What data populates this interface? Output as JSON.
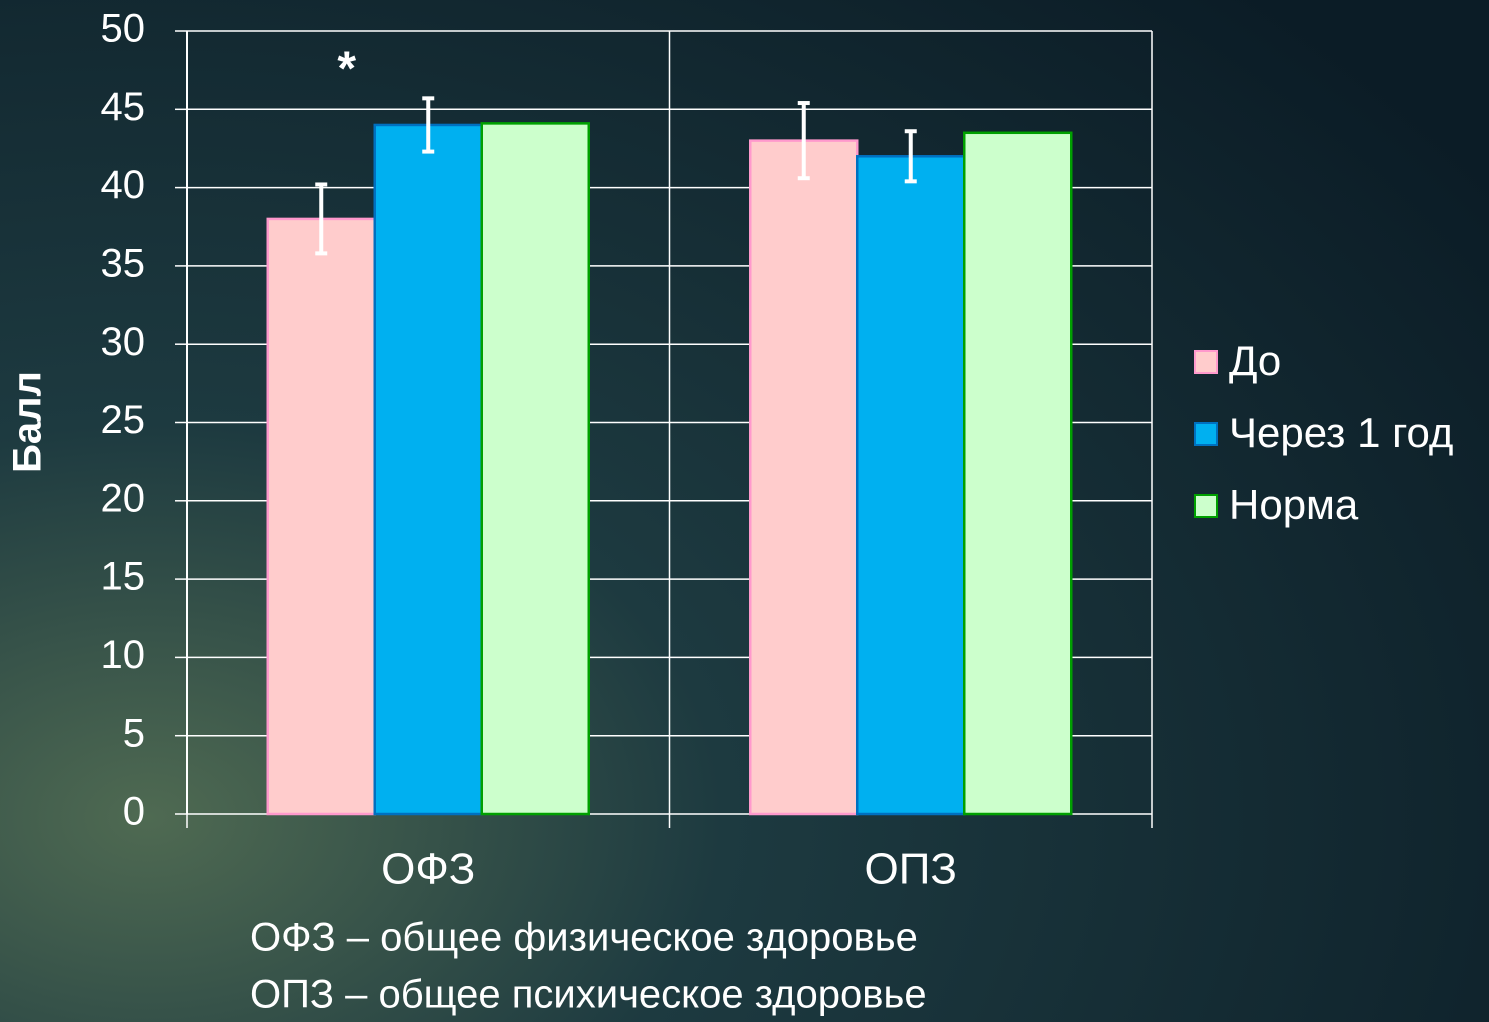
{
  "chart_data": {
    "type": "bar",
    "y_label": "Балл",
    "categories": [
      "ОФЗ",
      "ОПЗ"
    ],
    "series": [
      {
        "name": "До",
        "color": "#ffcccc",
        "edge": "#ff99cc",
        "values": [
          38,
          43
        ],
        "errors": [
          2.2,
          2.4
        ]
      },
      {
        "name": "Через 1 год",
        "color": "#00b0f0",
        "edge": "#0070c0",
        "values": [
          44,
          42
        ],
        "errors": [
          1.7,
          1.6
        ]
      },
      {
        "name": "Норма",
        "color": "#ccffcc",
        "edge": "#00a000",
        "values": [
          44.1,
          43.5
        ],
        "errors": [
          null,
          null
        ]
      }
    ],
    "annotations": [
      "*"
    ],
    "notes": [
      "ОФЗ – общее физическое здоровье",
      "ОПЗ – общее психическое здоровье"
    ],
    "ylim": [
      0,
      50
    ],
    "yticks": [
      0,
      5,
      10,
      15,
      20,
      25,
      30,
      35,
      40,
      45,
      50
    ],
    "grid": true,
    "legend": "right"
  }
}
